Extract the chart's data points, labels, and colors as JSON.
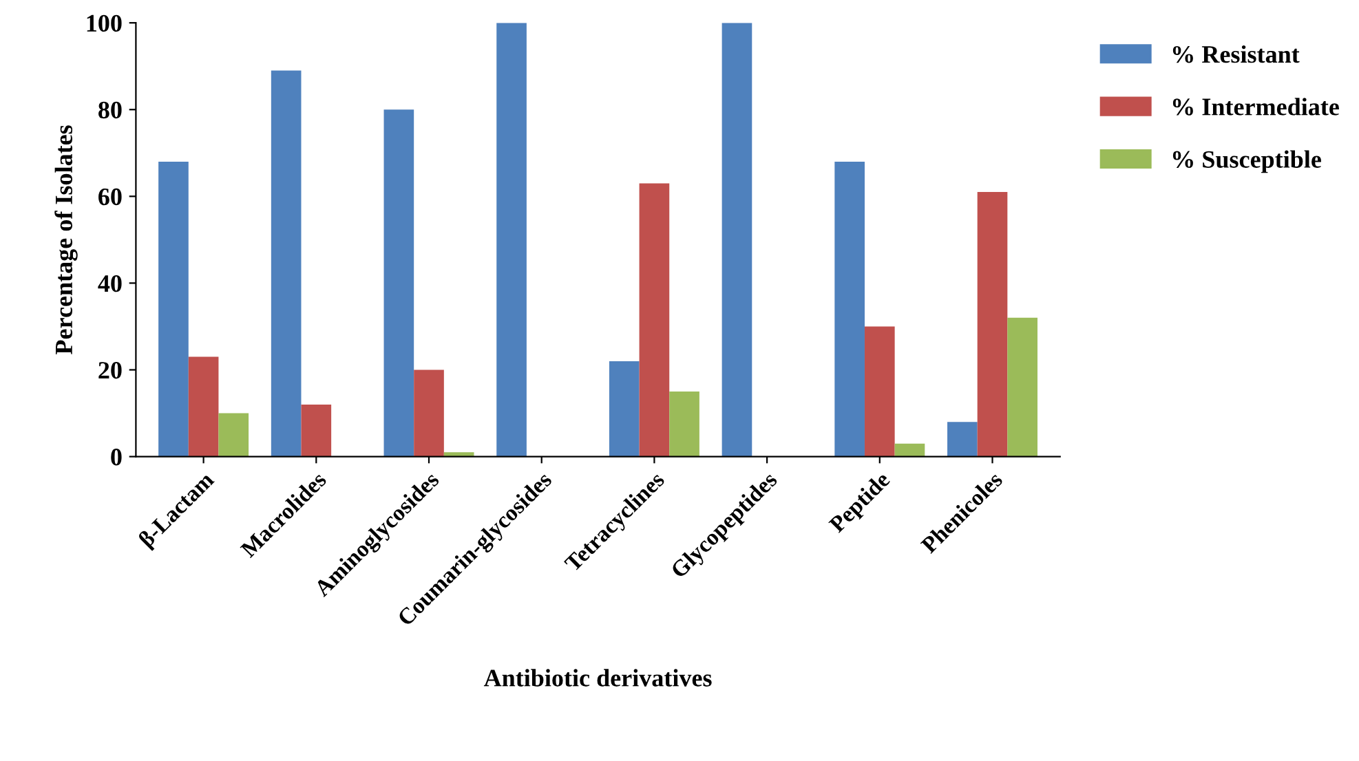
{
  "chart_data": {
    "type": "bar",
    "xlabel": "Antibiotic derivatives",
    "ylabel": "Percentage of Isolates",
    "categories": [
      "β-Lactam",
      "Macrolides",
      "Aminoglycosides",
      "Coumarin-glycosides",
      "Tetracyclines",
      "Glycopeptides",
      "Peptide",
      "Phenicoles"
    ],
    "series": [
      {
        "name": "% Resistant",
        "color": "#4f81bd",
        "values": [
          68,
          89,
          80,
          100,
          22,
          100,
          68,
          8
        ]
      },
      {
        "name": "% Intermediate",
        "color": "#c0504d",
        "values": [
          23,
          12,
          20,
          0,
          63,
          0,
          30,
          61
        ]
      },
      {
        "name": "% Susceptible",
        "color": "#9bbb59",
        "values": [
          10,
          0,
          1,
          0,
          15,
          0,
          3,
          32
        ]
      }
    ],
    "ylim": [
      0,
      100
    ],
    "yticks": [
      0,
      20,
      40,
      60,
      80,
      100
    ],
    "grid": false,
    "legend": "top right"
  }
}
